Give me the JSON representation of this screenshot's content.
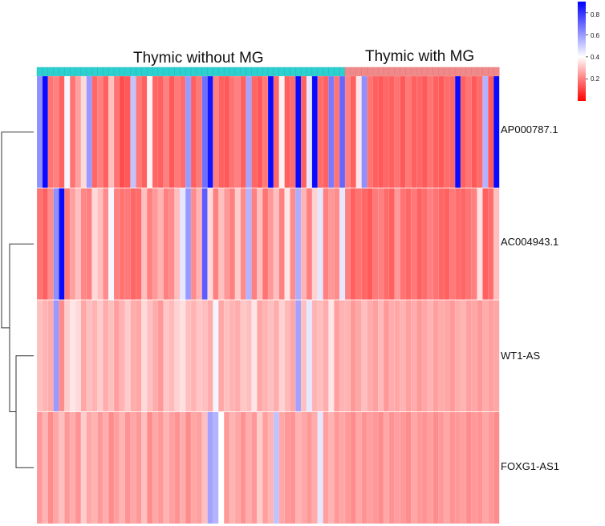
{
  "chart_data": {
    "type": "heatmap",
    "title": "",
    "groups": [
      {
        "name": "Thymic without MG",
        "count": 56,
        "color": "#2ecfcf"
      },
      {
        "name": "Thymic with MG",
        "count": 28,
        "color": "#f08a8a"
      }
    ],
    "rows": [
      {
        "name": "AP000787.1",
        "values": [
          0.62,
          0.88,
          0.18,
          0.2,
          0.15,
          0.42,
          0.18,
          0.25,
          0.34,
          0.6,
          0.16,
          0.2,
          0.15,
          0.3,
          0.18,
          0.12,
          0.14,
          0.52,
          0.19,
          0.15,
          0.38,
          0.16,
          0.15,
          0.2,
          0.14,
          0.19,
          0.17,
          0.6,
          0.15,
          0.19,
          0.68,
          0.86,
          0.2,
          0.15,
          0.14,
          0.18,
          0.2,
          0.15,
          0.58,
          0.16,
          0.14,
          0.19,
          0.88,
          0.16,
          0.38,
          0.15,
          0.17,
          0.88,
          0.15,
          0.45,
          0.88,
          0.17,
          0.15,
          0.66,
          0.18,
          0.7,
          0.2,
          0.15,
          0.36,
          0.62,
          0.18,
          0.15,
          0.14,
          0.16,
          0.15,
          0.18,
          0.14,
          0.19,
          0.15,
          0.16,
          0.14,
          0.18,
          0.15,
          0.14,
          0.17,
          0.16,
          0.88,
          0.15,
          0.18,
          0.14,
          0.17,
          0.55,
          0.14,
          0.88
        ]
      },
      {
        "name": "AC004943.1",
        "values": [
          0.18,
          0.15,
          0.22,
          0.62,
          0.88,
          0.19,
          0.25,
          0.3,
          0.21,
          0.2,
          0.34,
          0.3,
          0.22,
          0.42,
          0.2,
          0.18,
          0.19,
          0.16,
          0.17,
          0.3,
          0.2,
          0.24,
          0.28,
          0.2,
          0.22,
          0.3,
          0.45,
          0.6,
          0.22,
          0.28,
          0.72,
          0.34,
          0.2,
          0.3,
          0.24,
          0.2,
          0.32,
          0.22,
          0.55,
          0.2,
          0.3,
          0.18,
          0.24,
          0.3,
          0.2,
          0.36,
          0.22,
          0.56,
          0.28,
          0.2,
          0.33,
          0.45,
          0.2,
          0.24,
          0.22,
          0.45,
          0.2,
          0.15,
          0.18,
          0.16,
          0.14,
          0.19,
          0.2,
          0.17,
          0.15,
          0.24,
          0.18,
          0.16,
          0.19,
          0.15,
          0.17,
          0.2,
          0.18,
          0.16,
          0.15,
          0.19,
          0.17,
          0.16,
          0.18,
          0.2,
          0.35,
          0.15,
          0.17,
          0.3
        ]
      },
      {
        "name": "WT1-AS",
        "values": [
          0.3,
          0.28,
          0.27,
          0.6,
          0.22,
          0.32,
          0.36,
          0.34,
          0.26,
          0.3,
          0.28,
          0.32,
          0.27,
          0.3,
          0.25,
          0.28,
          0.32,
          0.27,
          0.26,
          0.34,
          0.3,
          0.27,
          0.24,
          0.31,
          0.29,
          0.33,
          0.35,
          0.3,
          0.28,
          0.31,
          0.3,
          0.27,
          0.42,
          0.26,
          0.3,
          0.28,
          0.27,
          0.31,
          0.3,
          0.36,
          0.26,
          0.28,
          0.3,
          0.27,
          0.33,
          0.29,
          0.26,
          0.58,
          0.3,
          0.45,
          0.28,
          0.3,
          0.27,
          0.36,
          0.25,
          0.28,
          0.28,
          0.24,
          0.26,
          0.3,
          0.27,
          0.25,
          0.29,
          0.24,
          0.27,
          0.26,
          0.28,
          0.25,
          0.27,
          0.24,
          0.26,
          0.28,
          0.25,
          0.27,
          0.26,
          0.24,
          0.27,
          0.28,
          0.25,
          0.26,
          0.24,
          0.27,
          0.25,
          0.26
        ]
      },
      {
        "name": "FOXG1-AS1",
        "values": [
          0.24,
          0.28,
          0.22,
          0.26,
          0.3,
          0.24,
          0.27,
          0.23,
          0.32,
          0.26,
          0.28,
          0.24,
          0.27,
          0.22,
          0.25,
          0.28,
          0.23,
          0.26,
          0.24,
          0.3,
          0.22,
          0.26,
          0.24,
          0.28,
          0.25,
          0.23,
          0.27,
          0.22,
          0.26,
          0.25,
          0.3,
          0.58,
          0.55,
          0.4,
          0.24,
          0.28,
          0.26,
          0.23,
          0.27,
          0.24,
          0.32,
          0.25,
          0.28,
          0.52,
          0.26,
          0.24,
          0.23,
          0.28,
          0.26,
          0.24,
          0.27,
          0.45,
          0.25,
          0.28,
          0.24,
          0.26,
          0.24,
          0.22,
          0.26,
          0.23,
          0.25,
          0.24,
          0.22,
          0.26,
          0.23,
          0.25,
          0.24,
          0.22,
          0.26,
          0.24,
          0.23,
          0.25,
          0.22,
          0.24,
          0.26,
          0.23,
          0.24,
          0.25,
          0.22,
          0.24,
          0.23,
          0.26,
          0.24,
          0.22
        ]
      }
    ],
    "dendrogram": {
      "leaf_order": [
        "AP000787.1",
        "AC004943.1",
        "WT1-AS",
        "FOXG1-AS1"
      ],
      "merges": [
        {
          "a": "WT1-AS",
          "b": "FOXG1-AS1",
          "height": 0.55
        },
        {
          "a": "AC004943.1",
          "b": "WT1-AS+FOXG1-AS1",
          "height": 0.75
        },
        {
          "a": "AP000787.1",
          "b": "rest",
          "height": 1.0
        }
      ]
    },
    "colorbar": {
      "range": [
        0.0,
        0.9
      ],
      "ticks": [
        "0.8",
        "0.6",
        "0.4",
        "0.2"
      ],
      "tick_values": [
        0.8,
        0.6,
        0.4,
        0.2
      ],
      "low_color": "#ff0000",
      "mid_color": "#ffffff",
      "high_color": "#0000ff",
      "mid_value": 0.4
    }
  }
}
